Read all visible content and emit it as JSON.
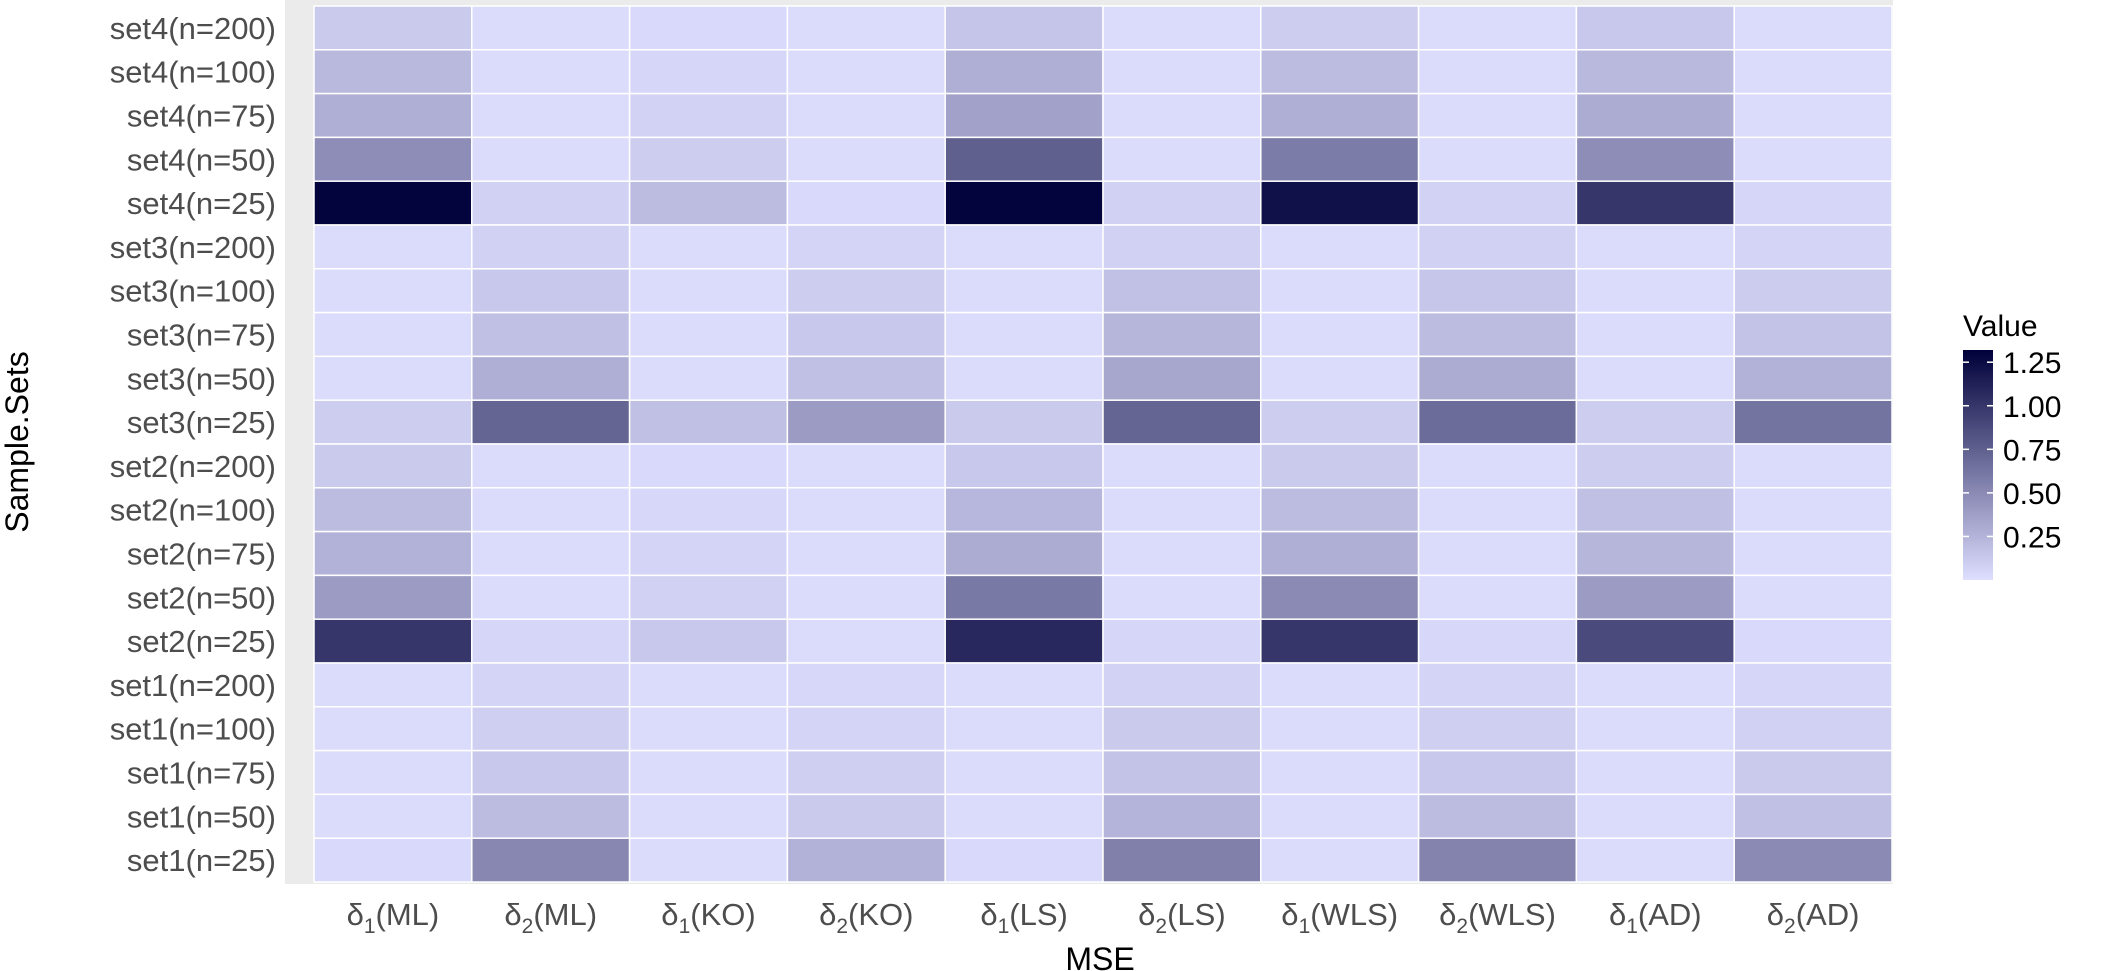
{
  "chart_data": {
    "type": "heatmap",
    "xlabel": "MSE",
    "ylabel": "Sample.Sets",
    "x_categories": [
      "δ1(ML)",
      "δ2(ML)",
      "δ1(KO)",
      "δ2(KO)",
      "δ1(LS)",
      "δ2(LS)",
      "δ1(WLS)",
      "δ2(WLS)",
      "δ1(AD)",
      "δ2(AD)"
    ],
    "y_categories": [
      "set4(n=200)",
      "set4(n=100)",
      "set4(n=75)",
      "set4(n=50)",
      "set4(n=25)",
      "set3(n=200)",
      "set3(n=100)",
      "set3(n=75)",
      "set3(n=50)",
      "set3(n=25)",
      "set2(n=200)",
      "set2(n=100)",
      "set2(n=75)",
      "set2(n=50)",
      "set2(n=25)",
      "set1(n=200)",
      "set1(n=100)",
      "set1(n=75)",
      "set1(n=50)",
      "set1(n=25)"
    ],
    "values": [
      [
        0.12,
        0.02,
        0.03,
        0.02,
        0.15,
        0.02,
        0.1,
        0.02,
        0.13,
        0.02
      ],
      [
        0.22,
        0.02,
        0.05,
        0.02,
        0.28,
        0.02,
        0.2,
        0.02,
        0.22,
        0.02
      ],
      [
        0.28,
        0.02,
        0.07,
        0.02,
        0.36,
        0.02,
        0.28,
        0.02,
        0.3,
        0.02
      ],
      [
        0.48,
        0.02,
        0.1,
        0.02,
        0.75,
        0.02,
        0.58,
        0.02,
        0.48,
        0.02
      ],
      [
        1.3,
        0.08,
        0.2,
        0.03,
        1.3,
        0.08,
        1.22,
        0.07,
        1.0,
        0.05
      ],
      [
        0.02,
        0.08,
        0.02,
        0.06,
        0.02,
        0.08,
        0.02,
        0.08,
        0.02,
        0.06
      ],
      [
        0.02,
        0.13,
        0.02,
        0.1,
        0.02,
        0.17,
        0.02,
        0.14,
        0.02,
        0.11
      ],
      [
        0.02,
        0.18,
        0.02,
        0.13,
        0.02,
        0.24,
        0.02,
        0.2,
        0.02,
        0.16
      ],
      [
        0.02,
        0.28,
        0.02,
        0.18,
        0.02,
        0.33,
        0.02,
        0.3,
        0.02,
        0.26
      ],
      [
        0.1,
        0.72,
        0.18,
        0.4,
        0.12,
        0.72,
        0.1,
        0.68,
        0.1,
        0.63
      ],
      [
        0.12,
        0.02,
        0.03,
        0.02,
        0.13,
        0.02,
        0.12,
        0.02,
        0.1,
        0.02
      ],
      [
        0.2,
        0.02,
        0.04,
        0.02,
        0.23,
        0.02,
        0.2,
        0.02,
        0.18,
        0.02
      ],
      [
        0.26,
        0.02,
        0.06,
        0.02,
        0.3,
        0.02,
        0.28,
        0.02,
        0.24,
        0.02
      ],
      [
        0.4,
        0.02,
        0.08,
        0.02,
        0.6,
        0.02,
        0.5,
        0.02,
        0.4,
        0.02
      ],
      [
        1.0,
        0.05,
        0.13,
        0.02,
        1.08,
        0.05,
        1.0,
        0.04,
        0.88,
        0.03
      ],
      [
        0.02,
        0.06,
        0.02,
        0.04,
        0.02,
        0.07,
        0.02,
        0.06,
        0.02,
        0.05
      ],
      [
        0.02,
        0.09,
        0.02,
        0.06,
        0.02,
        0.12,
        0.02,
        0.09,
        0.02,
        0.08
      ],
      [
        0.02,
        0.13,
        0.02,
        0.09,
        0.02,
        0.16,
        0.02,
        0.13,
        0.02,
        0.12
      ],
      [
        0.02,
        0.2,
        0.02,
        0.12,
        0.02,
        0.25,
        0.02,
        0.2,
        0.02,
        0.18
      ],
      [
        0.03,
        0.52,
        0.02,
        0.26,
        0.03,
        0.56,
        0.02,
        0.54,
        0.02,
        0.5
      ]
    ],
    "legend": {
      "title": "Value",
      "ticks": [
        1.25,
        1.0,
        0.75,
        0.5,
        0.25
      ],
      "tick_labels": [
        "1.25",
        "1.00",
        "0.75",
        "0.50",
        "0.25"
      ],
      "range": [
        0.0,
        1.32
      ],
      "color_low": "#dedeff",
      "color_high": "#00003a"
    },
    "panel_background": "#ebebeb",
    "grid": true
  }
}
